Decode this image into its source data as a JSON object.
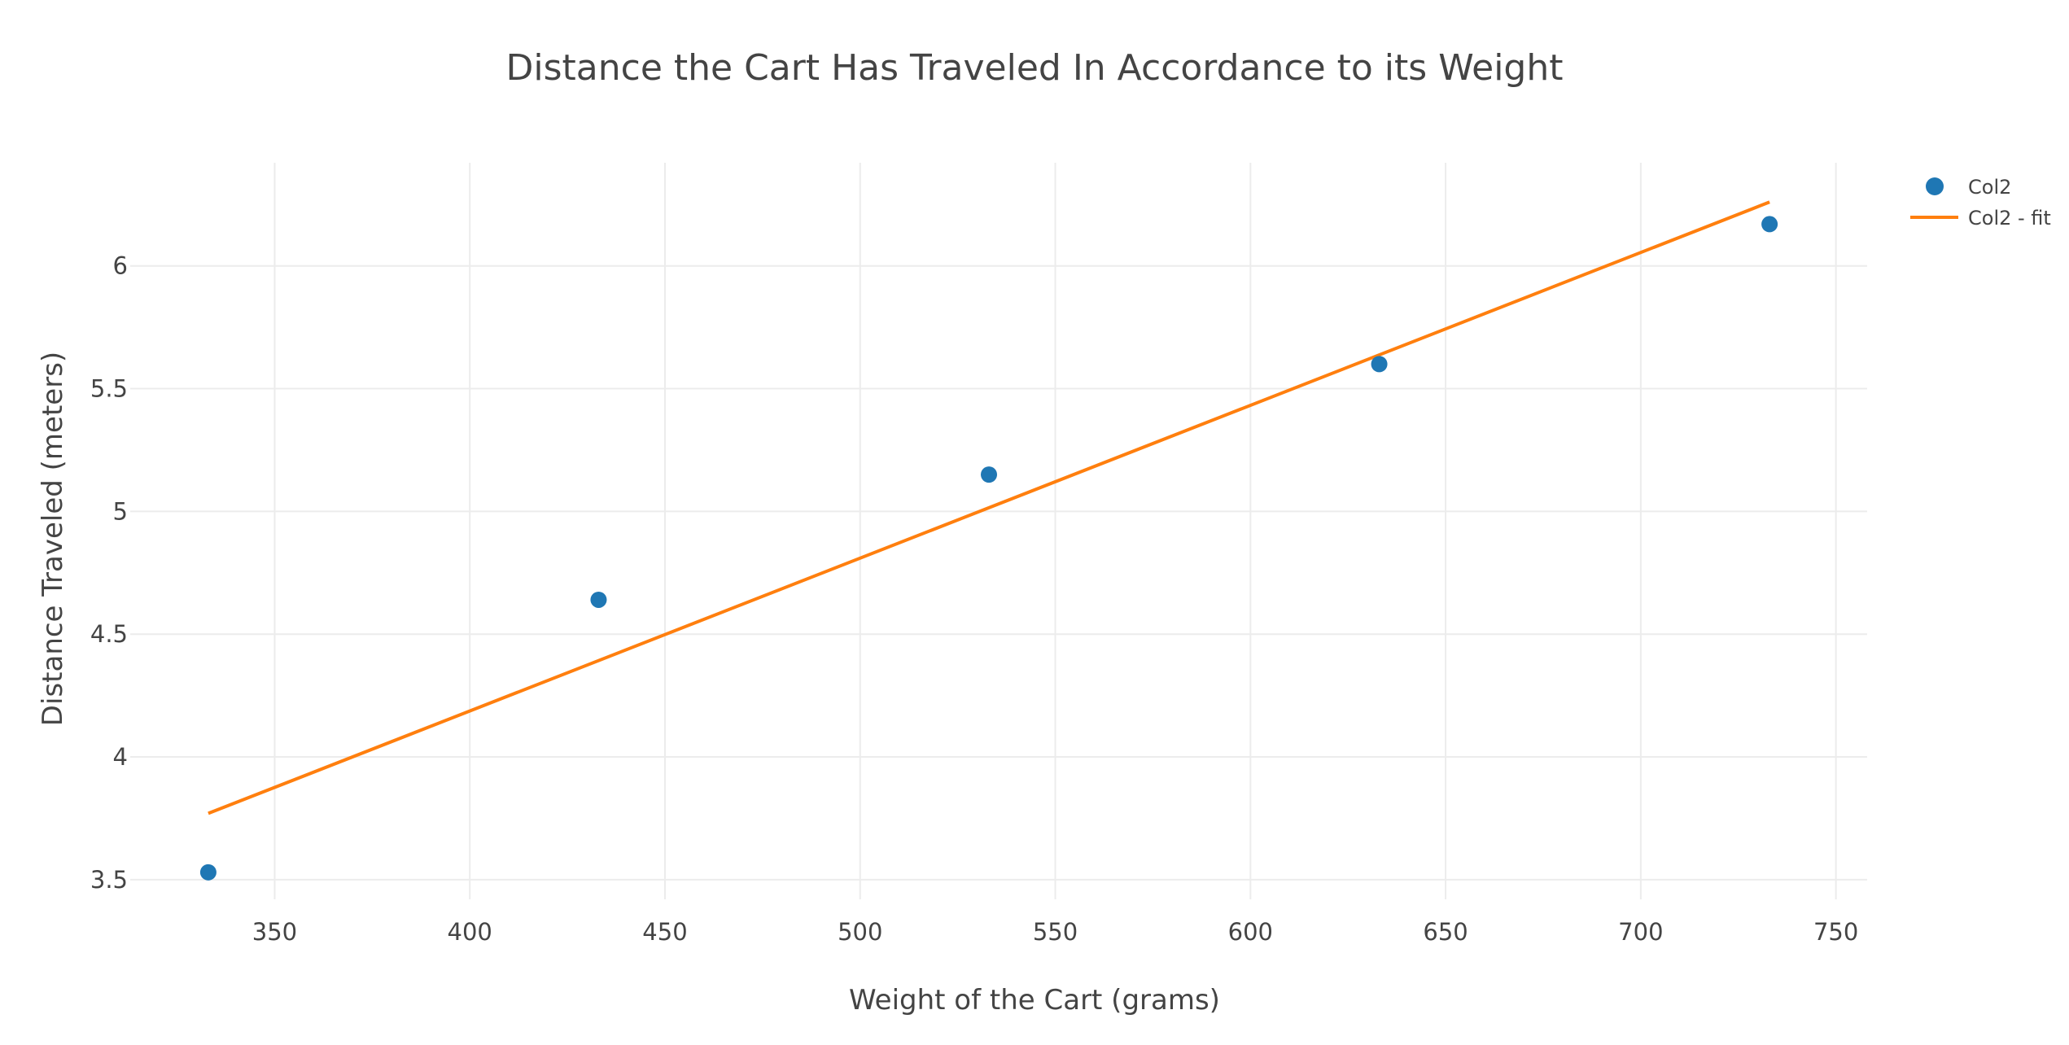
{
  "chart_data": {
    "type": "scatter",
    "title": "Distance the Cart Has Traveled In Accordance to its Weight",
    "xlabel": "Weight of the Cart (grams)",
    "ylabel": "Distance Traveled (meters)",
    "xlim": [
      313,
      758
    ],
    "ylim": [
      3.42,
      6.42
    ],
    "xticks": [
      350,
      400,
      450,
      500,
      550,
      600,
      650,
      700,
      750
    ],
    "yticks": [
      3.5,
      4,
      4.5,
      5,
      5.5,
      6
    ],
    "ytick_labels": [
      "3.5",
      "4",
      "4.5",
      "5",
      "5.5",
      "6"
    ],
    "grid": true,
    "legend": "top-right",
    "series": [
      {
        "name": "Col2",
        "kind": "markers",
        "color": "#1f77b4",
        "x": [
          333,
          433,
          533,
          633,
          733
        ],
        "y": [
          3.53,
          4.64,
          5.15,
          5.6,
          6.17
        ]
      },
      {
        "name": "Col2 - fit",
        "kind": "line",
        "color": "#ff7f0e",
        "x": [
          333,
          733
        ],
        "y": [
          3.77,
          6.26
        ]
      }
    ]
  }
}
